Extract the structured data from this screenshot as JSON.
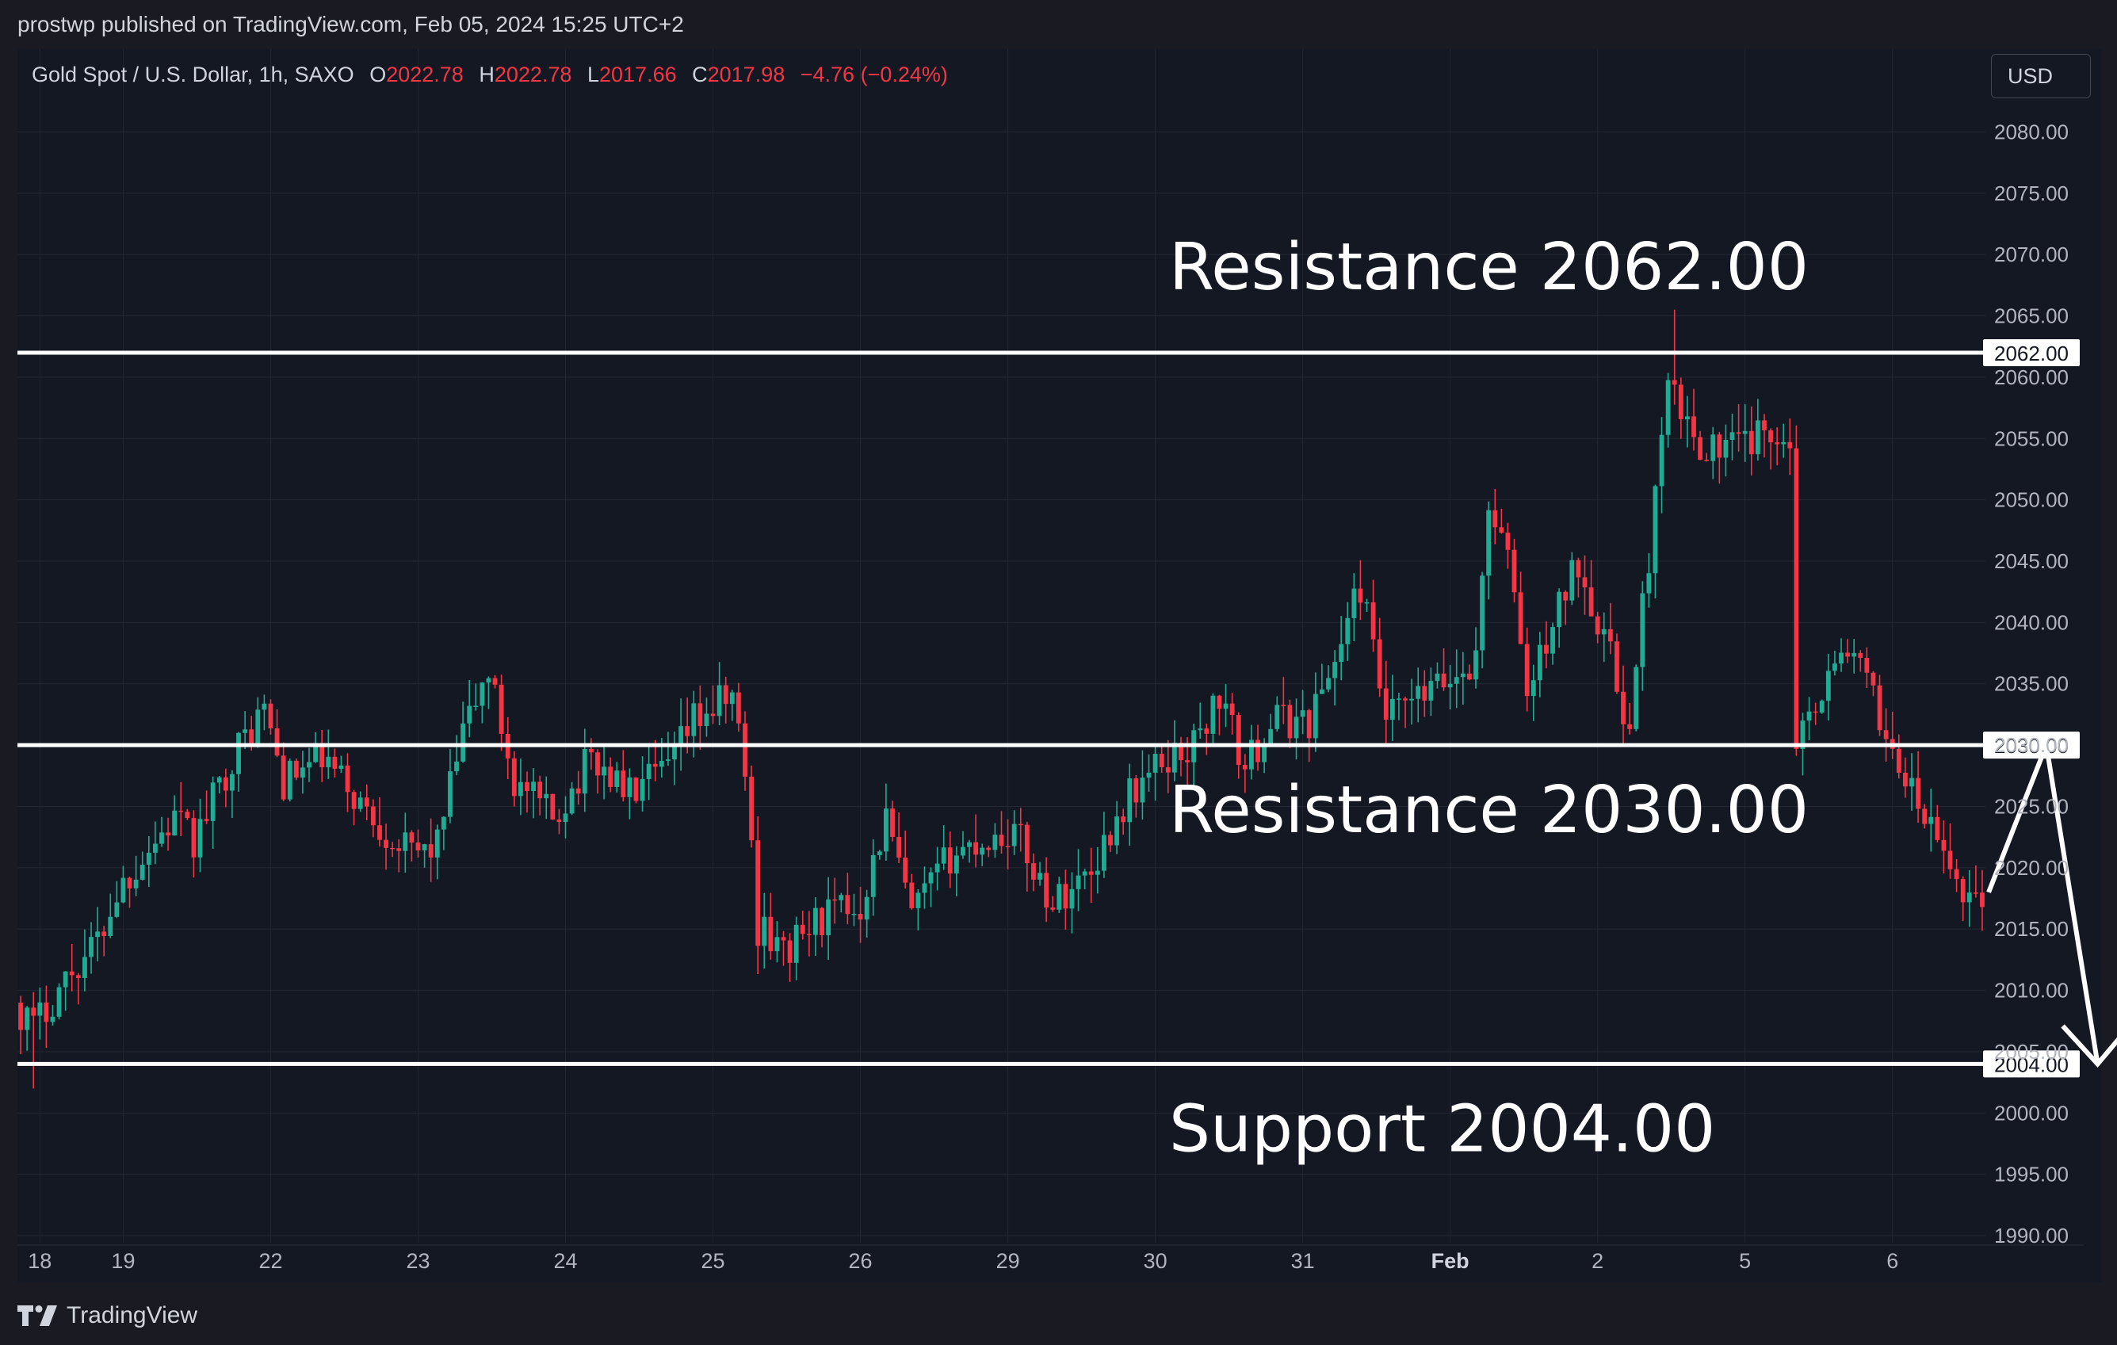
{
  "header": {
    "publish_line": "prostwp published on TradingView.com, Feb 05, 2024 15:25 UTC+2"
  },
  "legend": {
    "symbol": "Gold Spot / U.S. Dollar, 1h, SAXO",
    "open_label": "O",
    "open": "2022.78",
    "high_label": "H",
    "high": "2022.78",
    "low_label": "L",
    "low": "2017.66",
    "close_label": "C",
    "close": "2017.98",
    "change": "−4.76 (−0.24%)"
  },
  "currency_button": "USD",
  "brand": {
    "name": "TradingView",
    "logo_icon": "tradingview-logo-icon"
  },
  "colors": {
    "background": "#141823",
    "up": "#22ab94",
    "down": "#f23645",
    "grid": "#232733",
    "axis_text": "#b2b5be",
    "levels": "#ffffff"
  },
  "chart_data": {
    "type": "candlestick",
    "title": "Gold Spot / U.S. Dollar, 1h, SAXO",
    "ylim": [
      1988,
      2083
    ],
    "y_ticks": [
      1990,
      1995,
      2000,
      2005,
      2010,
      2015,
      2020,
      2025,
      2030,
      2035,
      2040,
      2045,
      2050,
      2055,
      2060,
      2065,
      2070,
      2075,
      2080
    ],
    "y_tick_labels": [
      "1990.00",
      "1995.00",
      "2000.00",
      "2005.00",
      "2010.00",
      "2015.00",
      "2020.00",
      "2025.00",
      "2030.00",
      "2035.00",
      "2040.00",
      "2045.00",
      "2050.00",
      "2055.00",
      "2060.00",
      "2065.00",
      "2070.00",
      "2075.00",
      "2080.00"
    ],
    "x_ticks": [
      {
        "label": "18",
        "bar": 3,
        "bold": false
      },
      {
        "label": "19",
        "bar": 16,
        "bold": false
      },
      {
        "label": "22",
        "bar": 39,
        "bold": false
      },
      {
        "label": "23",
        "bar": 62,
        "bold": false
      },
      {
        "label": "24",
        "bar": 85,
        "bold": false
      },
      {
        "label": "25",
        "bar": 108,
        "bold": false
      },
      {
        "label": "26",
        "bar": 131,
        "bold": false
      },
      {
        "label": "29",
        "bar": 154,
        "bold": false
      },
      {
        "label": "30",
        "bar": 177,
        "bold": false
      },
      {
        "label": "31",
        "bar": 200,
        "bold": false
      },
      {
        "label": "Feb",
        "bar": 223,
        "bold": true
      },
      {
        "label": "2",
        "bar": 246,
        "bold": false
      },
      {
        "label": "5",
        "bar": 269,
        "bold": false
      },
      {
        "label": "6",
        "bar": 292,
        "bold": false
      }
    ],
    "bar_count": 307,
    "keypoints": [
      [
        0,
        2009
      ],
      [
        3,
        2007
      ],
      [
        8,
        2011
      ],
      [
        13,
        2014
      ],
      [
        16,
        2018
      ],
      [
        20,
        2021
      ],
      [
        25,
        2024
      ],
      [
        28,
        2022
      ],
      [
        34,
        2029
      ],
      [
        39,
        2033
      ],
      [
        42,
        2027
      ],
      [
        48,
        2029
      ],
      [
        56,
        2024
      ],
      [
        62,
        2021
      ],
      [
        66,
        2022
      ],
      [
        70,
        2031
      ],
      [
        74,
        2036
      ],
      [
        78,
        2027
      ],
      [
        84,
        2024
      ],
      [
        90,
        2029
      ],
      [
        96,
        2026
      ],
      [
        102,
        2028
      ],
      [
        106,
        2032
      ],
      [
        112,
        2034
      ],
      [
        114,
        2028
      ],
      [
        116,
        2015
      ],
      [
        120,
        2013
      ],
      [
        126,
        2016
      ],
      [
        132,
        2017
      ],
      [
        136,
        2024
      ],
      [
        140,
        2016
      ],
      [
        146,
        2021
      ],
      [
        150,
        2022
      ],
      [
        156,
        2023
      ],
      [
        162,
        2017
      ],
      [
        168,
        2020
      ],
      [
        174,
        2026
      ],
      [
        180,
        2029
      ],
      [
        184,
        2030
      ],
      [
        188,
        2034
      ],
      [
        192,
        2028
      ],
      [
        196,
        2032
      ],
      [
        202,
        2032
      ],
      [
        206,
        2037
      ],
      [
        210,
        2043
      ],
      [
        214,
        2032
      ],
      [
        220,
        2034
      ],
      [
        226,
        2036
      ],
      [
        228,
        2037
      ],
      [
        230,
        2050
      ],
      [
        234,
        2043
      ],
      [
        236,
        2034
      ],
      [
        240,
        2040
      ],
      [
        244,
        2045
      ],
      [
        248,
        2039
      ],
      [
        252,
        2031
      ],
      [
        254,
        2041
      ],
      [
        256,
        2050
      ],
      [
        258,
        2059
      ],
      [
        262,
        2055
      ],
      [
        266,
        2054
      ],
      [
        272,
        2055
      ],
      [
        276,
        2056
      ],
      [
        277,
        2054
      ],
      [
        278,
        2031
      ],
      [
        281,
        2034
      ],
      [
        286,
        2038
      ],
      [
        288,
        2036
      ],
      [
        292,
        2031
      ],
      [
        296,
        2026
      ],
      [
        300,
        2022
      ],
      [
        304,
        2018
      ]
    ],
    "volatility": 2.6,
    "annotations": [
      {
        "text": "Resistance 2062.00",
        "price_label": "2062.00",
        "price": 2062,
        "label_pos": "above"
      },
      {
        "text": "Resistance 2030.00",
        "price_label": "2030.00",
        "price": 2030,
        "label_pos": "below"
      },
      {
        "text": "Support 2004.00",
        "price_label": "2004.00",
        "price": 2004,
        "label_pos": "below"
      }
    ],
    "projection": {
      "points": [
        [
          307,
          2018
        ],
        [
          316,
          2030
        ],
        [
          324,
          2004
        ]
      ]
    }
  }
}
